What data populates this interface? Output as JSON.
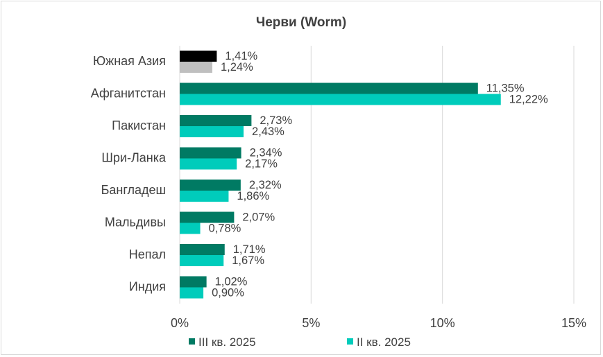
{
  "chart_data": {
    "type": "bar",
    "orientation": "horizontal",
    "title": "Черви (Worm)",
    "xlabel": "",
    "ylabel": "",
    "xlim": [
      0,
      15
    ],
    "x_ticks": [
      "0%",
      "5%",
      "10%",
      "15%"
    ],
    "grid": "vertical",
    "legend_position": "bottom",
    "categories": [
      "Южная Азия",
      "Афганитстан",
      "Пакистан",
      "Шри-Ланка",
      "Бангладеш",
      "Мальдивы",
      "Непал",
      "Индия"
    ],
    "series": [
      {
        "name": "III кв. 2025",
        "color": "#007A63",
        "values": [
          1.41,
          11.35,
          2.73,
          2.34,
          2.32,
          2.07,
          1.71,
          1.02
        ],
        "labels": [
          "1,41%",
          "11,35%",
          "2,73%",
          "2,34%",
          "2,32%",
          "2,07%",
          "1,71%",
          "1,02%"
        ]
      },
      {
        "name": "II кв. 2025",
        "color": "#00CCBB",
        "values": [
          1.24,
          12.22,
          2.43,
          2.17,
          1.86,
          0.78,
          1.67,
          0.9
        ],
        "labels": [
          "1,24%",
          "12,22%",
          "2,43%",
          "2,17%",
          "1,86%",
          "0,78%",
          "1,67%",
          "0,90%"
        ]
      }
    ],
    "highlight": {
      "category": "Южная Азия",
      "colors": [
        "#000000",
        "#BFBFBF"
      ]
    }
  }
}
